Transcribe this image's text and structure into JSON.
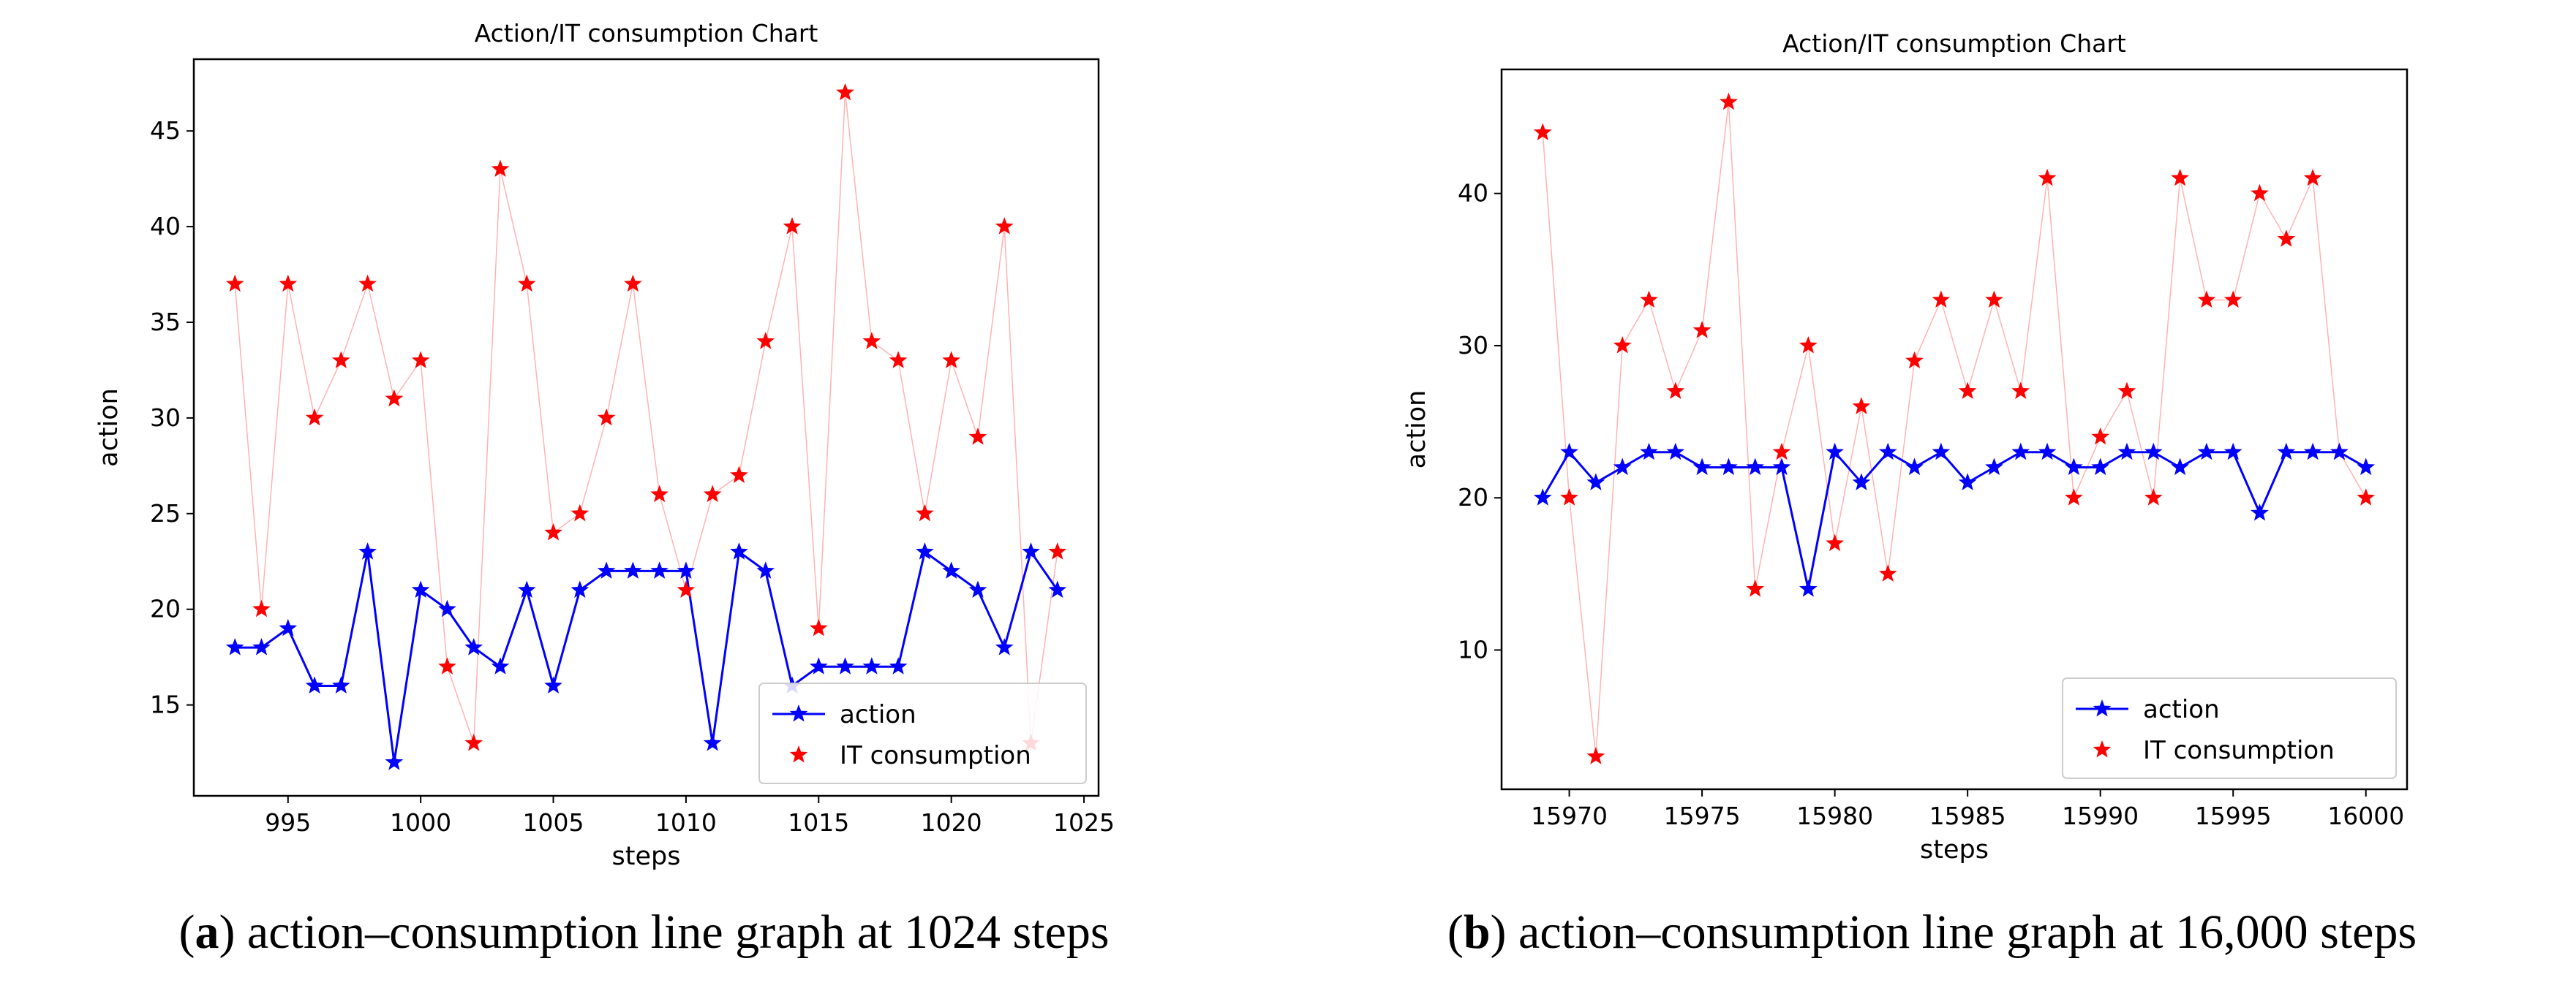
{
  "captions": [
    {
      "prefix": "(",
      "letter": "a",
      "suffix": ") action–consumption line graph at 1024 steps"
    },
    {
      "prefix": "(",
      "letter": "b",
      "suffix": ") action–consumption line graph at 16,000 steps"
    }
  ],
  "colors": {
    "action": "#0000ff",
    "consumption": "#ff0000",
    "consumption_line": "#ffb3b3"
  },
  "chart_data": [
    {
      "type": "line",
      "title": "Action/IT consumption Chart",
      "xlabel": "steps",
      "ylabel": "action",
      "xlim": [
        991.45,
        1025.55
      ],
      "ylim": [
        10.25,
        48.75
      ],
      "xticks": [
        995,
        1000,
        1005,
        1010,
        1015,
        1020,
        1025
      ],
      "yticks": [
        15,
        20,
        25,
        30,
        35,
        40,
        45
      ],
      "legend_position": "lower right",
      "x": [
        993,
        994,
        995,
        996,
        997,
        998,
        999,
        1000,
        1001,
        1002,
        1003,
        1004,
        1005,
        1006,
        1007,
        1008,
        1009,
        1010,
        1011,
        1012,
        1013,
        1014,
        1015,
        1016,
        1017,
        1018,
        1019,
        1020,
        1021,
        1022,
        1023,
        1024
      ],
      "series": [
        {
          "name": "action",
          "style": "line-star",
          "values": [
            18,
            18,
            19,
            16,
            16,
            23,
            12,
            21,
            20,
            18,
            17,
            21,
            16,
            21,
            22,
            22,
            22,
            22,
            13,
            23,
            22,
            16,
            17,
            17,
            17,
            17,
            23,
            22,
            21,
            18,
            23,
            21
          ]
        },
        {
          "name": "IT consumption",
          "style": "star-faint-line",
          "values": [
            37,
            20,
            37,
            30,
            33,
            37,
            31,
            33,
            17,
            13,
            43,
            37,
            24,
            25,
            30,
            37,
            26,
            21,
            26,
            27,
            34,
            40,
            19,
            47,
            34,
            33,
            25,
            33,
            29,
            40,
            13,
            23
          ]
        }
      ]
    },
    {
      "type": "line",
      "title": "Action/IT consumption Chart",
      "xlabel": "steps",
      "ylabel": "action",
      "xlim": [
        15967.45,
        16001.55
      ],
      "ylim": [
        0.85,
        48.15
      ],
      "xticks": [
        15970,
        15975,
        15980,
        15985,
        15990,
        15995,
        16000
      ],
      "yticks": [
        10,
        20,
        30,
        40
      ],
      "legend_position": "lower right",
      "x": [
        15969,
        15970,
        15971,
        15972,
        15973,
        15974,
        15975,
        15976,
        15977,
        15978,
        15979,
        15980,
        15981,
        15982,
        15983,
        15984,
        15985,
        15986,
        15987,
        15988,
        15989,
        15990,
        15991,
        15992,
        15993,
        15994,
        15995,
        15996,
        15997,
        15998,
        15999,
        16000
      ],
      "series": [
        {
          "name": "action",
          "style": "line-star",
          "values": [
            20,
            23,
            21,
            22,
            23,
            23,
            22,
            22,
            22,
            22,
            14,
            23,
            21,
            23,
            22,
            23,
            21,
            22,
            23,
            23,
            22,
            22,
            23,
            23,
            22,
            23,
            23,
            19,
            23,
            23,
            23,
            22
          ]
        },
        {
          "name": "IT consumption",
          "style": "star-faint-line",
          "values": [
            44,
            20,
            3,
            30,
            33,
            27,
            31,
            46,
            14,
            23,
            30,
            17,
            26,
            15,
            29,
            33,
            27,
            33,
            27,
            41,
            20,
            24,
            27,
            20,
            41,
            33,
            33,
            40,
            37,
            41,
            23,
            20
          ]
        }
      ]
    }
  ]
}
